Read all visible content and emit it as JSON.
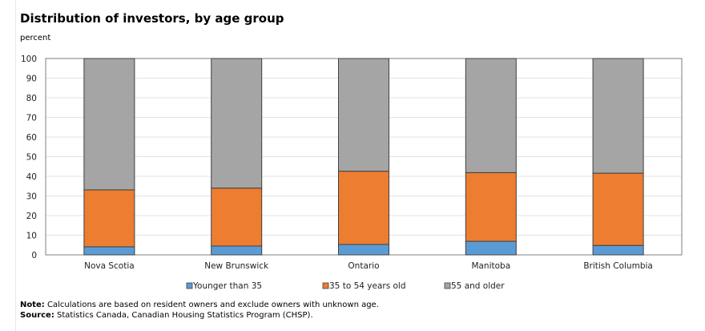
{
  "title": "Distribution  of investors, by age group",
  "unit_label": "percent",
  "note_label": "Note:",
  "note_text": "Calculations are based on resident owners and exclude owners with unknown age.",
  "source_label": "Source:",
  "source_text": "Statistics Canada, Canadian Housing Statistics Program (CHSP).",
  "chart_data": {
    "type": "bar",
    "stacked": true,
    "title": "Distribution  of investors, by age group",
    "ylabel": "percent",
    "ylim": [
      0,
      100
    ],
    "yticks": [
      0,
      10,
      20,
      30,
      40,
      50,
      60,
      70,
      80,
      90,
      100
    ],
    "grid": true,
    "legend_position": "bottom",
    "categories": [
      "Nova Scotia",
      "New Brunswick",
      "Ontario",
      "Manitoba",
      "British Columbia"
    ],
    "series": [
      {
        "name": "Younger than 35",
        "color": "#5b9bd5",
        "values": [
          4.1,
          4.5,
          5.3,
          6.9,
          4.8
        ]
      },
      {
        "name": "35 to 54 years old",
        "color": "#ed7d31",
        "values": [
          29.0,
          29.5,
          37.3,
          35.0,
          36.8
        ]
      },
      {
        "name": "55 and older",
        "color": "#a5a5a5",
        "values": [
          66.9,
          66.0,
          57.4,
          58.1,
          58.4
        ]
      }
    ]
  }
}
